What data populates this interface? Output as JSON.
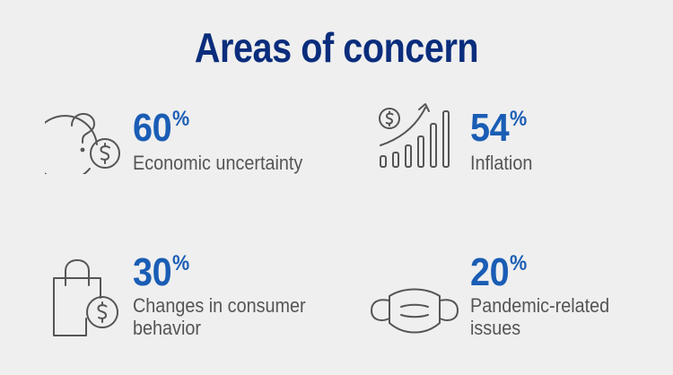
{
  "title": "Areas of concern",
  "colors": {
    "title": "#0a2d7c",
    "percent": "#1a5db5",
    "label": "#555555",
    "icon_stroke": "#555555",
    "background": "#efefef"
  },
  "items": [
    {
      "icon": "question-dollar-icon",
      "value": "60",
      "unit": "%",
      "label_lines": [
        "Economic uncertainty"
      ]
    },
    {
      "icon": "rising-bars-dollar-icon",
      "value": "54",
      "unit": "%",
      "label_lines": [
        "Inflation"
      ]
    },
    {
      "icon": "shopping-bag-dollar-icon",
      "value": "30",
      "unit": "%",
      "label_lines": [
        "Changes in consumer",
        "behavior"
      ]
    },
    {
      "icon": "face-mask-icon",
      "value": "20",
      "unit": "%",
      "label_lines": [
        "Pandemic-related",
        "issues"
      ]
    }
  ]
}
